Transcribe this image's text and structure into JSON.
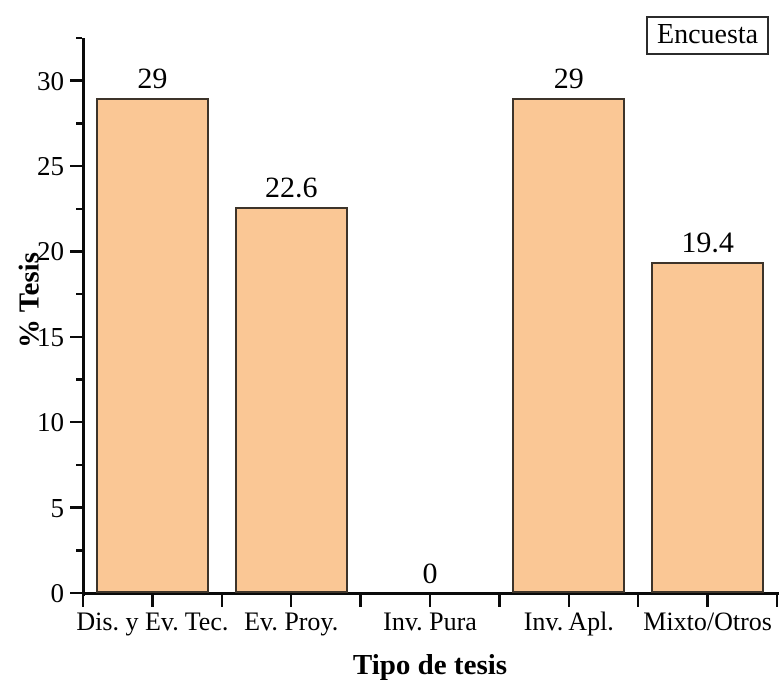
{
  "figure": {
    "background": "#FFFFFF"
  },
  "chart_data": {
    "type": "bar",
    "title": "",
    "categories": [
      "Dis. y Ev. Tec.",
      "Ev. Proy.",
      "Inv. Pura",
      "Inv. Apl.",
      "Mixto/Otros"
    ],
    "values": [
      29,
      22.6,
      0,
      29,
      19.4
    ],
    "value_labels": [
      "29",
      "22.6",
      "0",
      "29",
      "19.4"
    ],
    "xlabel": "Tipo de tesis",
    "ylabel": "% Tesis",
    "ylim": [
      0,
      32.5
    ],
    "y_major_ticks": [
      0,
      5,
      10,
      15,
      20,
      25,
      30
    ],
    "y_minor_ticks": [
      2.5,
      7.5,
      12.5,
      17.5,
      22.5,
      27.5,
      32.5
    ],
    "grid": false,
    "legend": {
      "entries": [
        "Encuesta"
      ],
      "position": "top-right"
    },
    "colors": {
      "bar_fill": "#FAC795",
      "bar_border": "#3D342A",
      "axis": "#0A0A0A",
      "text": "#000000",
      "legend_border": "#2B2B2B"
    }
  }
}
